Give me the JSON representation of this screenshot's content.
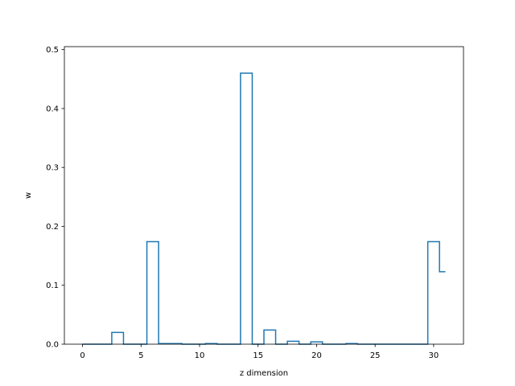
{
  "chart_data": {
    "type": "line",
    "style": "step",
    "xlabel": "z dimension",
    "ylabel": "w",
    "xlim": [
      -1.55,
      32.55
    ],
    "ylim": [
      0,
      0.505
    ],
    "xticks": [
      0,
      5,
      10,
      15,
      20,
      25,
      30
    ],
    "yticks": [
      0.0,
      0.1,
      0.2,
      0.3,
      0.4,
      0.5
    ],
    "x": [
      0,
      1,
      2,
      3,
      4,
      5,
      6,
      7,
      8,
      9,
      10,
      11,
      12,
      13,
      14,
      15,
      16,
      17,
      18,
      19,
      20,
      21,
      22,
      23,
      24,
      25,
      26,
      27,
      28,
      29,
      30,
      31
    ],
    "values": [
      0,
      0,
      0,
      0.02,
      0,
      0,
      0.174,
      0.001,
      0.001,
      0,
      0,
      0.001,
      0,
      0,
      0.46,
      0,
      0.024,
      0,
      0.005,
      0,
      0.004,
      0,
      0,
      0.001,
      0,
      0,
      0,
      0,
      0,
      0,
      0.174,
      0.123
    ],
    "grid": false,
    "color": "#1f77b4"
  }
}
